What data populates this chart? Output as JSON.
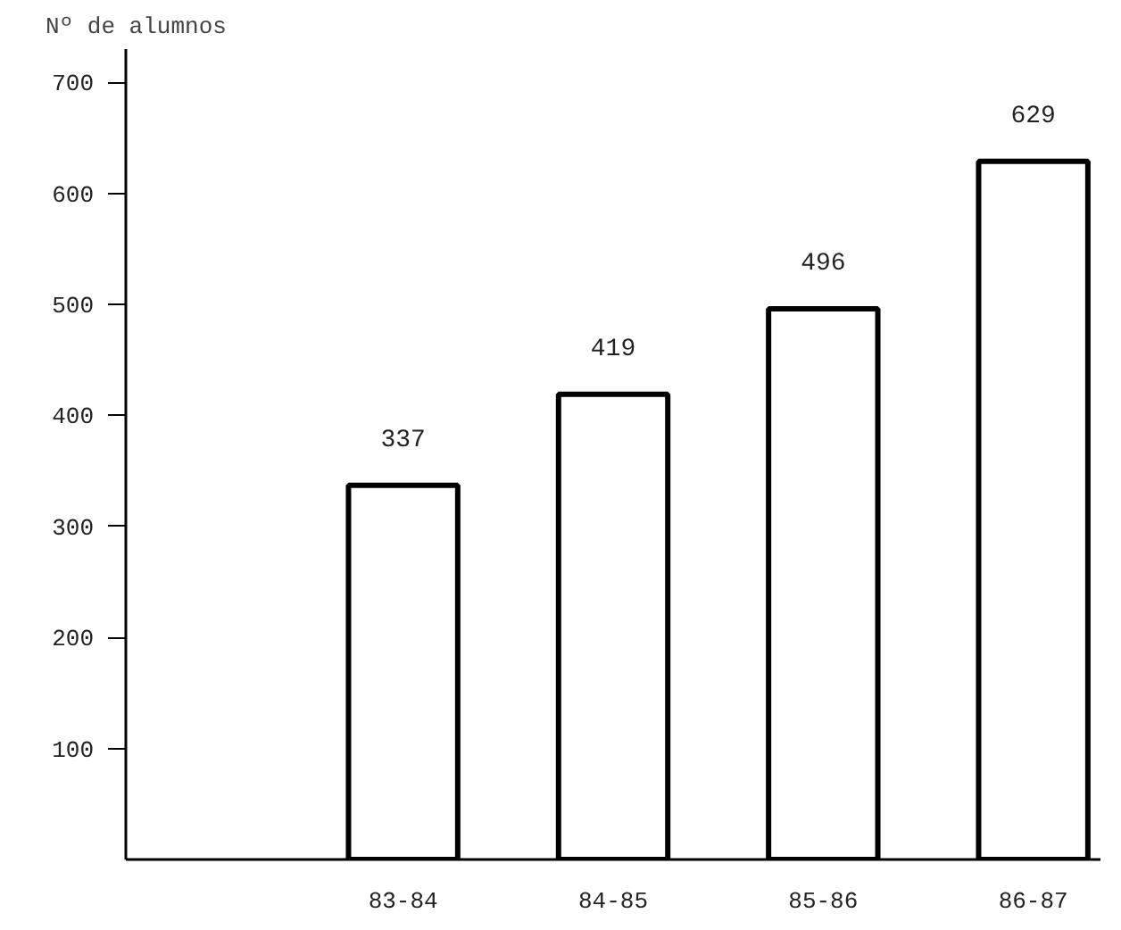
{
  "chart_data": {
    "type": "bar",
    "ylabel": "Nº de alumnos",
    "categories": [
      "83-84",
      "84-85",
      "85-86",
      "86-87"
    ],
    "values": [
      337,
      419,
      496,
      629
    ],
    "color": "#ffffff",
    "ylim": [
      0,
      730
    ],
    "yticks": [
      100,
      200,
      300,
      400,
      500,
      600,
      700
    ],
    "data_labels": true,
    "grid": false
  }
}
